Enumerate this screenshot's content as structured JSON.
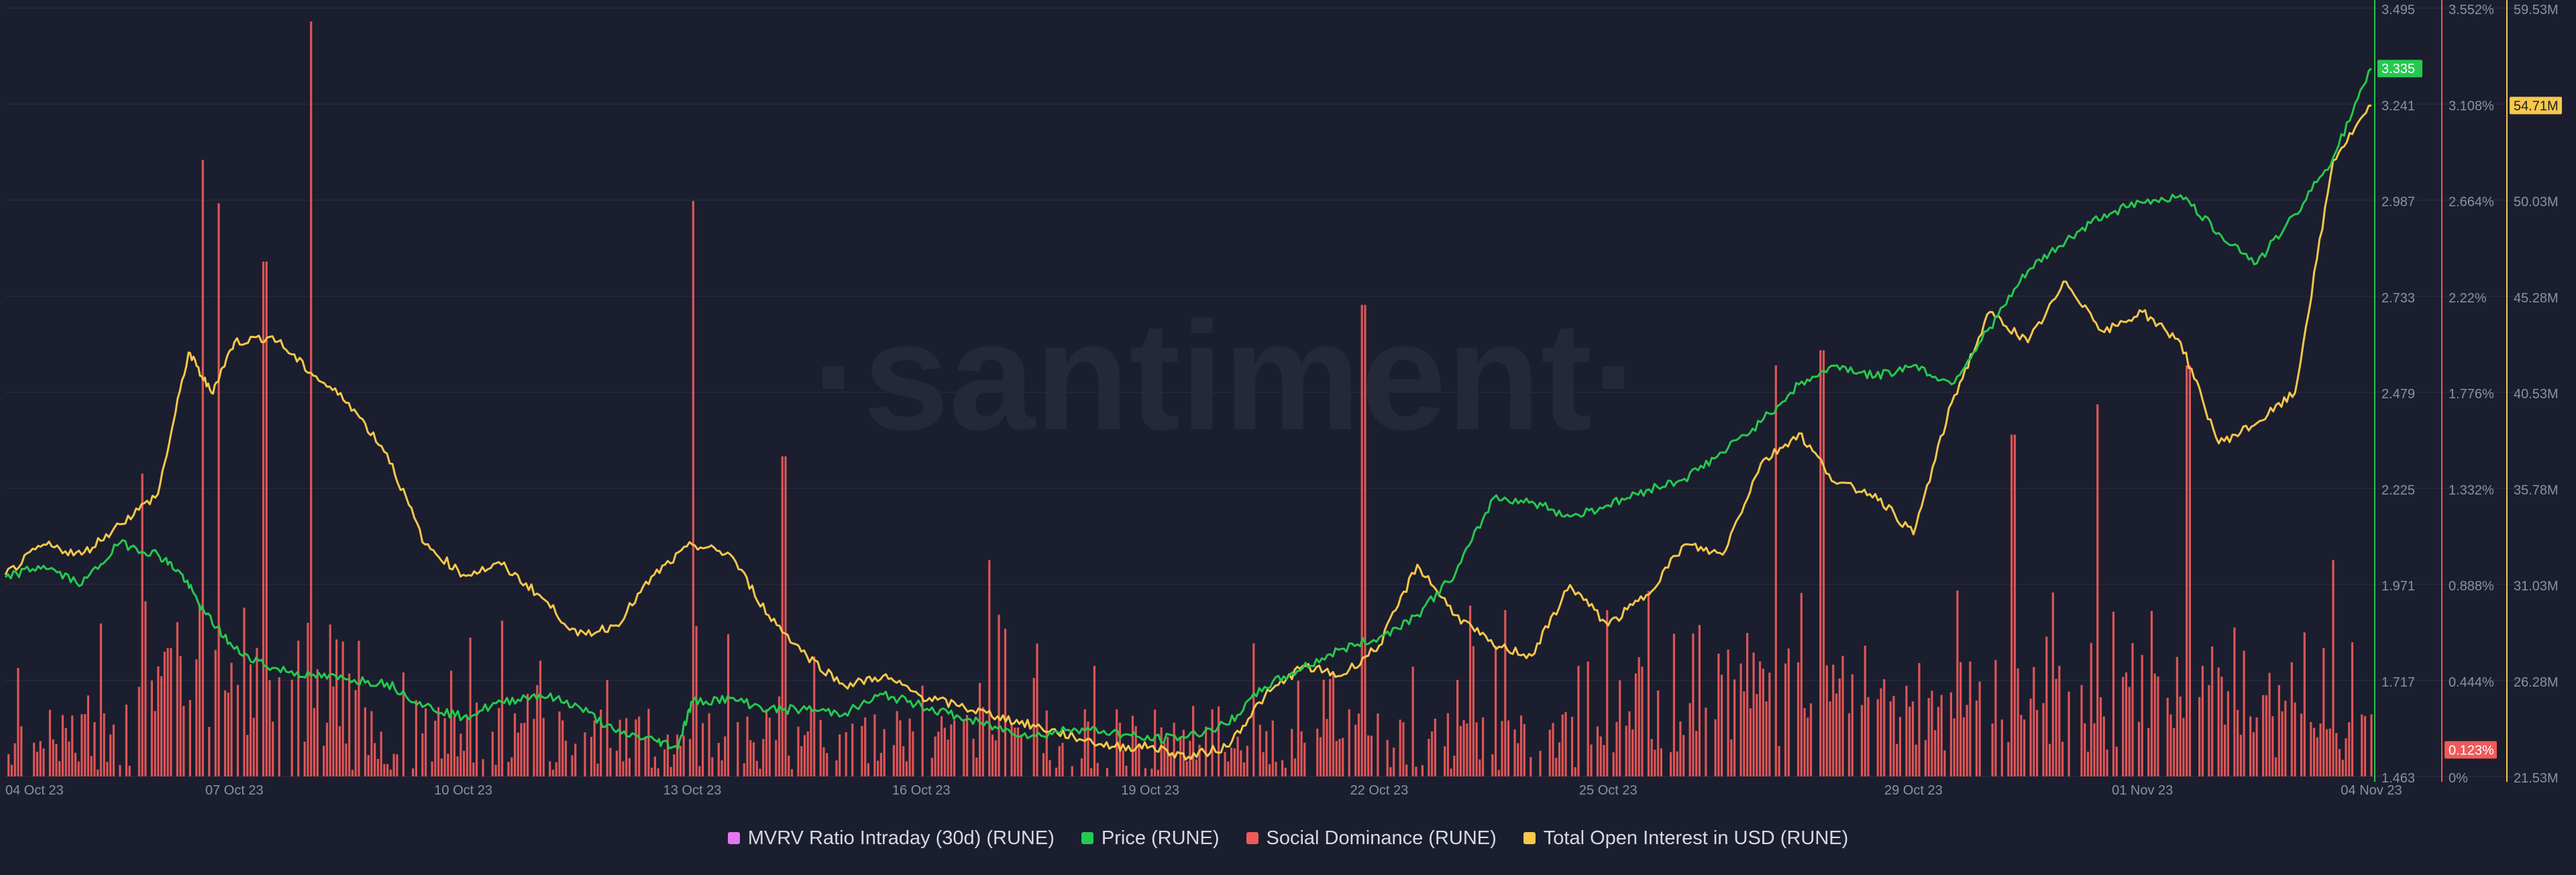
{
  "watermark": "·santiment·",
  "colors": {
    "background": "#1b1e2e",
    "price": "#26c94f",
    "social": "#ef5a5a",
    "oi": "#f7c84a",
    "mvrv": "#e576f2",
    "tick_text": "#8b90a6"
  },
  "legend": [
    {
      "label": "MVRV Ratio Intraday (30d) (RUNE)",
      "color": "#e576f2"
    },
    {
      "label": "Price (RUNE)",
      "color": "#26c94f"
    },
    {
      "label": "Social Dominance (RUNE)",
      "color": "#ef5a5a"
    },
    {
      "label": "Total Open Interest in USD (RUNE)",
      "color": "#f7c84a"
    }
  ],
  "chart_data": {
    "type": "line",
    "x_tick_labels": [
      "04 Oct 23",
      "07 Oct 23",
      "10 Oct 23",
      "13 Oct 23",
      "16 Oct 23",
      "19 Oct 23",
      "22 Oct 23",
      "25 Oct 23",
      "29 Oct 23",
      "01 Nov 23",
      "04 Nov 23"
    ],
    "x_tick_days": [
      0,
      3,
      6,
      9,
      12,
      15,
      18,
      21,
      25,
      28,
      31
    ],
    "grid": true,
    "legend_position": "bottom",
    "axes": {
      "price": {
        "ylim": [
          1.463,
          3.495
        ],
        "ticks": [
          "3.495",
          "3.241",
          "2.987",
          "2.733",
          "2.479",
          "2.225",
          "1.971",
          "1.717",
          "1.463"
        ],
        "last_value_label": "3.335"
      },
      "social_dominance": {
        "ylim": [
          0,
          3.552
        ],
        "ticks": [
          "3.552%",
          "3.108%",
          "2.664%",
          "2.22%",
          "1.776%",
          "1.332%",
          "0.888%",
          "0.444%",
          "0%"
        ],
        "last_value_label": "0.123%"
      },
      "open_interest": {
        "ylim": [
          21.53,
          59.53
        ],
        "ticks": [
          "59.53M",
          "54.71M",
          "50.03M",
          "45.28M",
          "40.53M",
          "35.78M",
          "31.03M",
          "26.28M",
          "21.53M"
        ],
        "last_value_label": "54.71M"
      }
    },
    "series": [
      {
        "name": "Price (RUNE)",
        "axis": "price",
        "points": [
          [
            0,
            1.99
          ],
          [
            0.5,
            2.02
          ],
          [
            1,
            1.97
          ],
          [
            1.5,
            2.08
          ],
          [
            2,
            2.05
          ],
          [
            2.3,
            2.0
          ],
          [
            2.6,
            1.9
          ],
          [
            3,
            1.8
          ],
          [
            3.5,
            1.75
          ],
          [
            4,
            1.73
          ],
          [
            4.5,
            1.72
          ],
          [
            5,
            1.71
          ],
          [
            5.5,
            1.65
          ],
          [
            6,
            1.62
          ],
          [
            6.5,
            1.66
          ],
          [
            7,
            1.68
          ],
          [
            7.5,
            1.65
          ],
          [
            8,
            1.58
          ],
          [
            8.5,
            1.56
          ],
          [
            8.8,
            1.54
          ],
          [
            9,
            1.66
          ],
          [
            9.5,
            1.67
          ],
          [
            10,
            1.64
          ],
          [
            10.5,
            1.64
          ],
          [
            11,
            1.63
          ],
          [
            11.5,
            1.68
          ],
          [
            12,
            1.65
          ],
          [
            12.5,
            1.62
          ],
          [
            13,
            1.59
          ],
          [
            13.5,
            1.57
          ],
          [
            14,
            1.59
          ],
          [
            14.5,
            1.58
          ],
          [
            15,
            1.56
          ],
          [
            15.5,
            1.57
          ],
          [
            16,
            1.6
          ],
          [
            16.5,
            1.7
          ],
          [
            17,
            1.75
          ],
          [
            17.5,
            1.8
          ],
          [
            18,
            1.83
          ],
          [
            18.5,
            1.89
          ],
          [
            19,
            2.0
          ],
          [
            19.5,
            2.2
          ],
          [
            20,
            2.19
          ],
          [
            20.5,
            2.15
          ],
          [
            21,
            2.18
          ],
          [
            21.5,
            2.22
          ],
          [
            22,
            2.25
          ],
          [
            22.5,
            2.32
          ],
          [
            23,
            2.4
          ],
          [
            23.5,
            2.5
          ],
          [
            24,
            2.55
          ],
          [
            24.5,
            2.52
          ],
          [
            25,
            2.55
          ],
          [
            25.5,
            2.5
          ],
          [
            26,
            2.65
          ],
          [
            26.5,
            2.8
          ],
          [
            27,
            2.88
          ],
          [
            27.5,
            2.95
          ],
          [
            28,
            2.98
          ],
          [
            28.5,
            3.0
          ],
          [
            29,
            2.9
          ],
          [
            29.5,
            2.82
          ],
          [
            30,
            2.95
          ],
          [
            30.5,
            3.1
          ],
          [
            31,
            3.335
          ]
        ]
      },
      {
        "name": "Total Open Interest in USD (RUNE)",
        "axis": "open_interest",
        "points": [
          [
            0,
            31.5
          ],
          [
            0.5,
            33.0
          ],
          [
            1,
            32.5
          ],
          [
            1.5,
            34.0
          ],
          [
            2,
            35.5
          ],
          [
            2.4,
            42.5
          ],
          [
            2.7,
            40.5
          ],
          [
            3,
            43.0
          ],
          [
            3.5,
            43.3
          ],
          [
            4,
            41.5
          ],
          [
            4.5,
            40.0
          ],
          [
            5,
            37.5
          ],
          [
            5.5,
            33.0
          ],
          [
            6,
            31.5
          ],
          [
            6.5,
            32.0
          ],
          [
            7,
            30.5
          ],
          [
            7.5,
            28.5
          ],
          [
            8,
            29.0
          ],
          [
            8.5,
            31.5
          ],
          [
            9,
            33.0
          ],
          [
            9.5,
            32.5
          ],
          [
            10,
            29.5
          ],
          [
            10.5,
            27.5
          ],
          [
            11,
            26.0
          ],
          [
            11.5,
            26.5
          ],
          [
            12,
            25.5
          ],
          [
            12.5,
            25.0
          ],
          [
            13,
            24.5
          ],
          [
            13.5,
            24.0
          ],
          [
            14,
            23.5
          ],
          [
            14.5,
            23.0
          ],
          [
            15,
            23.0
          ],
          [
            15.5,
            22.5
          ],
          [
            16,
            23.0
          ],
          [
            16.5,
            25.5
          ],
          [
            17,
            27.0
          ],
          [
            17.5,
            26.5
          ],
          [
            18,
            28.0
          ],
          [
            18.5,
            32.0
          ],
          [
            19,
            29.5
          ],
          [
            19.5,
            28.0
          ],
          [
            20,
            27.5
          ],
          [
            20.5,
            31.0
          ],
          [
            21,
            29.0
          ],
          [
            21.5,
            30.5
          ],
          [
            22,
            33.0
          ],
          [
            22.5,
            32.5
          ],
          [
            23,
            37.0
          ],
          [
            23.5,
            38.5
          ],
          [
            24,
            36.0
          ],
          [
            24.5,
            35.5
          ],
          [
            25,
            33.5
          ],
          [
            25.5,
            40.0
          ],
          [
            26,
            44.5
          ],
          [
            26.5,
            43.0
          ],
          [
            27,
            46.0
          ],
          [
            27.5,
            43.5
          ],
          [
            28,
            44.5
          ],
          [
            28.5,
            43.0
          ],
          [
            29,
            38.0
          ],
          [
            29.5,
            39.0
          ],
          [
            30,
            40.5
          ],
          [
            30.5,
            52.0
          ],
          [
            31,
            54.71
          ]
        ]
      },
      {
        "name": "Social Dominance (RUNE)",
        "axis": "social_dominance",
        "type": "bar",
        "spikes": [
          [
            1.8,
            1.4
          ],
          [
            2.6,
            2.85
          ],
          [
            2.8,
            2.65
          ],
          [
            3.4,
            2.38
          ],
          [
            4.0,
            3.49
          ],
          [
            9.0,
            2.66
          ],
          [
            10.2,
            1.48
          ],
          [
            12.9,
            1.0
          ],
          [
            17.8,
            2.18
          ],
          [
            23.2,
            1.9
          ],
          [
            23.8,
            1.97
          ],
          [
            26.3,
            1.58
          ],
          [
            27.4,
            1.72
          ],
          [
            28.6,
            1.9
          ],
          [
            30.5,
            1.0
          ]
        ]
      }
    ]
  }
}
